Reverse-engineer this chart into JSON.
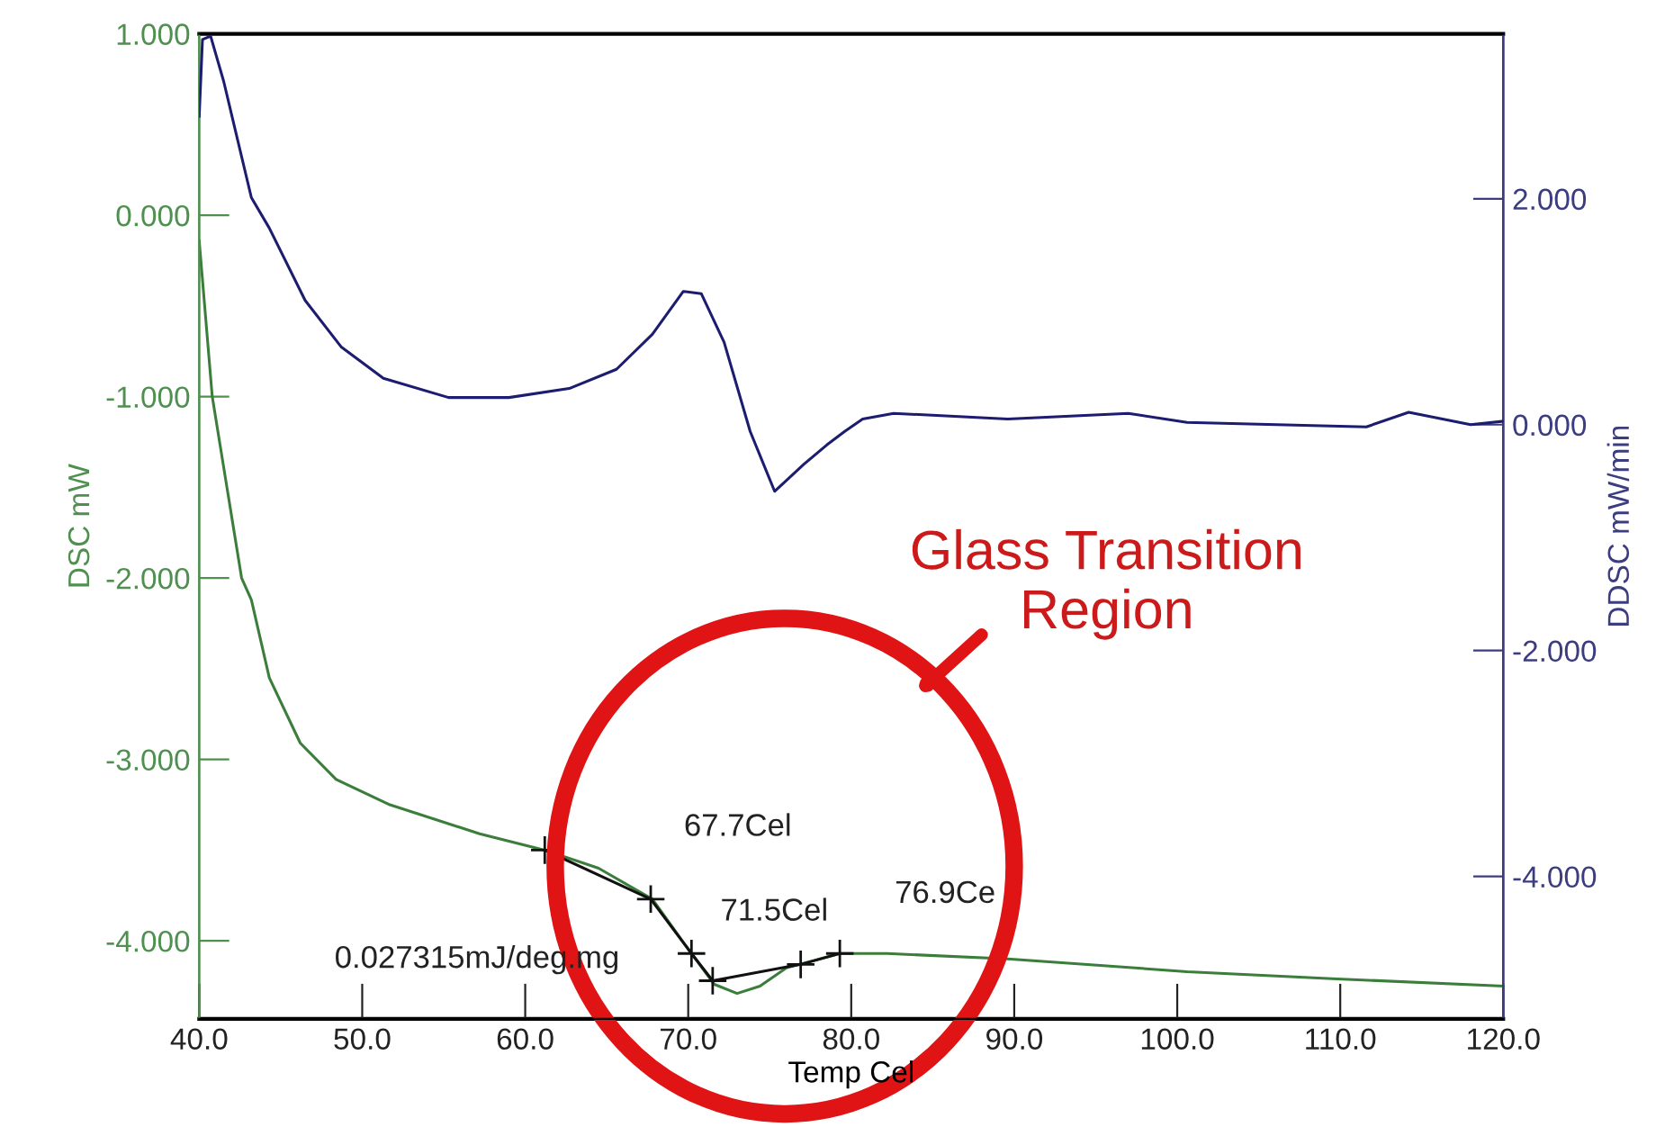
{
  "chart_data": {
    "type": "line",
    "xlabel": "Temp Cel",
    "ylabel": "DSC mW",
    "y2label": "DDSC mW/min",
    "xlim": [
      40.0,
      120.0
    ],
    "xticks": [
      {
        "value": 40,
        "label": "40.0"
      },
      {
        "value": 50,
        "label": "50.0"
      },
      {
        "value": 60,
        "label": "60.0"
      },
      {
        "value": 70,
        "label": "70.0"
      },
      {
        "value": 80,
        "label": "80.0"
      },
      {
        "value": 90,
        "label": "90.0"
      },
      {
        "value": 100,
        "label": "100.0"
      },
      {
        "value": 110,
        "label": "110.0"
      },
      {
        "value": 120,
        "label": "120.0"
      }
    ],
    "ylim": [
      -4.43,
      1.0
    ],
    "yticks": [
      {
        "value": 1,
        "label": "1.000"
      },
      {
        "value": 0,
        "label": "0.000"
      },
      {
        "value": -1,
        "label": "-1.000"
      },
      {
        "value": -2,
        "label": "-2.000"
      },
      {
        "value": -3,
        "label": "-3.000"
      },
      {
        "value": -4,
        "label": "-4.000"
      }
    ],
    "y2lim": [
      -5.26,
      3.46
    ],
    "y2ticks": [
      {
        "value": 2,
        "label": "2.000"
      },
      {
        "value": 0,
        "label": "0.000"
      },
      {
        "value": -2,
        "label": "-2.000"
      },
      {
        "value": -4,
        "label": "-4.000"
      }
    ],
    "grid": false,
    "legend": false,
    "series": [
      {
        "color": "#3b7d3b",
        "x": [
          40.0,
          40.8,
          42.6,
          43.2,
          44.3,
          46.2,
          48.4,
          51.7,
          57.2,
          61.2,
          64.5,
          67.8,
          70.2,
          71.6,
          73.0,
          74.4,
          76.0,
          79.3,
          82.2,
          89.6,
          100.6,
          109.8,
          120.0
        ],
        "values": [
          -0.14,
          -1.0,
          -2.0,
          -2.12,
          -2.55,
          -2.91,
          -3.11,
          -3.25,
          -3.41,
          -3.5,
          -3.6,
          -3.77,
          -4.07,
          -4.24,
          -4.29,
          -4.25,
          -4.15,
          -4.07,
          -4.07,
          -4.1,
          -4.17,
          -4.21,
          -4.25
        ]
      },
      {
        "color": "#1c1c70",
        "axis": "y2",
        "x": [
          40.0,
          40.2,
          40.7,
          41.5,
          43.2,
          44.3,
          46.5,
          48.7,
          51.3,
          55.3,
          59.0,
          62.7,
          65.6,
          67.8,
          69.7,
          70.8,
          72.2,
          73.8,
          75.3,
          77.1,
          78.5,
          79.6,
          80.7,
          82.6,
          89.6,
          97.0,
          100.6,
          111.6,
          114.2,
          118.0,
          120.0
        ],
        "values": [
          2.73,
          3.41,
          3.44,
          3.04,
          2.01,
          1.74,
          1.1,
          0.69,
          0.41,
          0.24,
          0.24,
          0.32,
          0.49,
          0.8,
          1.18,
          1.16,
          0.73,
          -0.06,
          -0.59,
          -0.35,
          -0.18,
          -0.06,
          0.05,
          0.1,
          0.05,
          0.1,
          0.02,
          -0.02,
          0.11,
          0.0,
          0.03
        ]
      },
      {
        "color": "#111111",
        "marker": "cross",
        "x": [
          61.2,
          67.7,
          70.2,
          71.5,
          76.9,
          79.3
        ],
        "values": [
          -3.5,
          -3.77,
          -4.07,
          -4.22,
          -4.13,
          -4.07
        ]
      }
    ],
    "annotations": [
      "67.7Cel",
      "71.5Cel",
      "76.9Ce",
      "0.027315mJ/deg.mg",
      "Glass Transition\nRegion"
    ]
  }
}
